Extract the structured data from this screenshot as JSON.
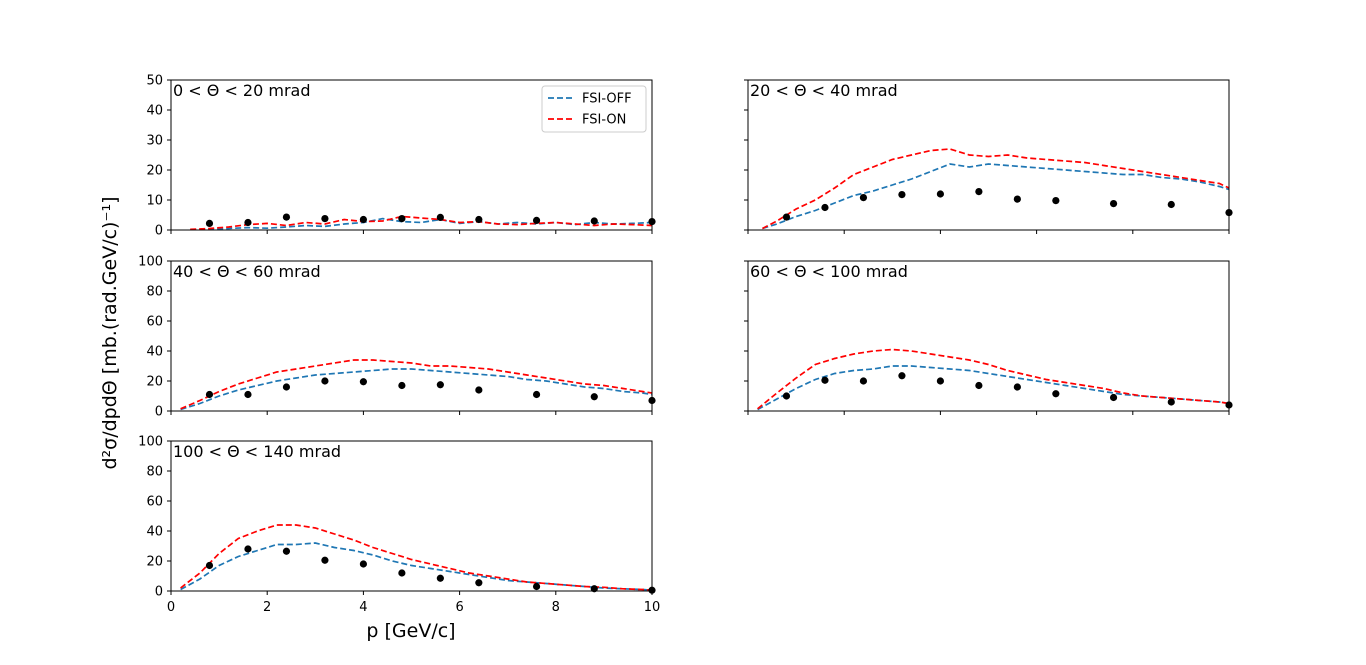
{
  "figure": {
    "ylabel": "d²σ/dpdΘ [mb.(rad.GeV/c)⁻¹]",
    "xlabel": "p [GeV/c]",
    "legend": [
      {
        "name": "FSI-OFF",
        "color": "#1f77b4"
      },
      {
        "name": "FSI-ON",
        "color": "#ff0000"
      }
    ],
    "data_color": "#000000"
  },
  "chart_data": [
    {
      "type": "line",
      "title": "0 < Θ < 20 mrad",
      "xlim": [
        0,
        10
      ],
      "ylim": [
        0,
        50
      ],
      "yticks": [
        "0",
        "10",
        "20",
        "30",
        "40",
        "50"
      ],
      "xticks": [
        "0",
        "2",
        "4",
        "6",
        "8",
        "10"
      ],
      "show_xticklabels": false,
      "show_yticklabels": true,
      "series": [
        {
          "name": "FSI-OFF",
          "x": [
            0.4,
            0.8,
            1.2,
            1.6,
            2.0,
            2.4,
            2.8,
            3.2,
            3.6,
            4.0,
            4.4,
            4.8,
            5.2,
            5.6,
            6.0,
            6.4,
            6.8,
            7.2,
            7.6,
            8.0,
            8.4,
            8.8,
            9.2,
            9.6,
            10.0
          ],
          "values": [
            0.0,
            0.3,
            0.5,
            0.8,
            0.6,
            1.0,
            1.5,
            1.2,
            2.0,
            2.5,
            3.8,
            2.8,
            2.5,
            3.5,
            2.2,
            2.8,
            2.0,
            2.5,
            2.0,
            2.5,
            1.8,
            2.5,
            2.0,
            2.2,
            2.5
          ]
        },
        {
          "name": "FSI-ON",
          "x": [
            0.4,
            0.8,
            1.2,
            1.6,
            2.0,
            2.4,
            2.8,
            3.2,
            3.6,
            4.0,
            4.4,
            4.8,
            5.2,
            5.6,
            6.0,
            6.4,
            6.8,
            7.2,
            7.6,
            8.0,
            8.4,
            8.8,
            9.2,
            9.6,
            10.0
          ],
          "values": [
            0.2,
            0.5,
            1.0,
            1.8,
            2.2,
            1.5,
            2.5,
            2.0,
            3.5,
            2.8,
            3.0,
            4.5,
            4.0,
            3.5,
            2.5,
            2.8,
            2.0,
            1.8,
            2.2,
            2.5,
            2.0,
            1.5,
            2.0,
            1.8,
            1.5
          ]
        }
      ],
      "points": {
        "x": [
          0.8,
          1.6,
          2.4,
          3.2,
          4.0,
          4.8,
          5.6,
          6.4,
          7.6,
          8.8,
          10.0
        ],
        "values": [
          2.2,
          2.5,
          4.3,
          3.8,
          3.5,
          3.8,
          4.2,
          3.5,
          3.2,
          3.0,
          2.8
        ]
      }
    },
    {
      "type": "line",
      "title": "20 < Θ < 40 mrad",
      "xlim": [
        0,
        10
      ],
      "ylim": [
        0,
        50
      ],
      "yticks": [
        "0",
        "10",
        "20",
        "30",
        "40",
        "50"
      ],
      "xticks": [
        "0",
        "2",
        "4",
        "6",
        "8",
        "10"
      ],
      "show_xticklabels": false,
      "show_yticklabels": false,
      "series": [
        {
          "name": "FSI-OFF",
          "x": [
            0.3,
            0.6,
            1.0,
            1.4,
            1.8,
            2.2,
            2.6,
            3.0,
            3.4,
            3.8,
            4.2,
            4.6,
            5.0,
            5.4,
            5.8,
            6.2,
            6.6,
            7.0,
            7.4,
            7.8,
            8.2,
            8.6,
            9.0,
            9.4,
            9.8,
            10.0
          ],
          "values": [
            0.5,
            2.0,
            4.5,
            6.5,
            9.0,
            11.5,
            13.0,
            15.0,
            17.0,
            19.5,
            22.0,
            21.0,
            22.0,
            21.5,
            21.0,
            20.5,
            20.0,
            19.5,
            19.0,
            18.5,
            18.5,
            17.5,
            17.0,
            16.0,
            14.5,
            13.5
          ]
        },
        {
          "name": "FSI-ON",
          "x": [
            0.3,
            0.6,
            1.0,
            1.4,
            1.8,
            2.2,
            2.6,
            3.0,
            3.4,
            3.8,
            4.2,
            4.6,
            5.0,
            5.4,
            5.8,
            6.2,
            6.6,
            7.0,
            7.4,
            7.8,
            8.2,
            8.6,
            9.0,
            9.4,
            9.8,
            10.0
          ],
          "values": [
            0.5,
            3.0,
            7.0,
            10.0,
            14.0,
            18.5,
            21.0,
            23.5,
            25.0,
            26.5,
            27.0,
            25.0,
            24.5,
            25.0,
            24.0,
            23.5,
            23.0,
            22.5,
            21.5,
            20.5,
            19.5,
            18.5,
            17.5,
            16.5,
            15.5,
            14.0
          ]
        }
      ],
      "points": {
        "x": [
          0.8,
          1.6,
          2.4,
          3.2,
          4.0,
          4.8,
          5.6,
          6.4,
          7.6,
          8.8,
          10.0
        ],
        "values": [
          4.3,
          7.5,
          10.8,
          11.8,
          12.0,
          12.8,
          10.3,
          9.8,
          8.8,
          8.5,
          5.8
        ]
      }
    },
    {
      "type": "line",
      "title": "40 < Θ < 60 mrad",
      "xlim": [
        0,
        10
      ],
      "ylim": [
        0,
        100
      ],
      "yticks": [
        "0",
        "20",
        "40",
        "60",
        "80",
        "100"
      ],
      "xticks": [
        "0",
        "2",
        "4",
        "6",
        "8",
        "10"
      ],
      "show_xticklabels": false,
      "show_yticklabels": true,
      "series": [
        {
          "name": "FSI-OFF",
          "x": [
            0.2,
            0.6,
            1.0,
            1.4,
            1.8,
            2.2,
            2.6,
            3.0,
            3.4,
            3.8,
            4.2,
            4.6,
            5.0,
            5.4,
            5.8,
            6.2,
            6.6,
            7.0,
            7.4,
            7.8,
            8.2,
            8.6,
            9.0,
            9.4,
            9.8,
            10.0
          ],
          "values": [
            1.0,
            5.0,
            10.0,
            14.0,
            17.0,
            20.0,
            22.0,
            24.0,
            25.0,
            26.0,
            27.0,
            28.0,
            28.0,
            27.0,
            26.0,
            25.0,
            24.0,
            23.0,
            21.0,
            20.0,
            18.0,
            16.0,
            15.0,
            13.0,
            12.0,
            11.0
          ]
        },
        {
          "name": "FSI-ON",
          "x": [
            0.2,
            0.6,
            1.0,
            1.4,
            1.8,
            2.2,
            2.6,
            3.0,
            3.4,
            3.8,
            4.2,
            4.6,
            5.0,
            5.4,
            5.8,
            6.2,
            6.6,
            7.0,
            7.4,
            7.8,
            8.2,
            8.6,
            9.0,
            9.4,
            9.8,
            10.0
          ],
          "values": [
            1.5,
            7.0,
            13.0,
            18.0,
            22.0,
            26.0,
            28.0,
            30.0,
            32.0,
            34.0,
            34.0,
            33.0,
            32.0,
            30.0,
            30.0,
            29.0,
            28.0,
            26.0,
            24.0,
            22.0,
            20.0,
            18.0,
            17.0,
            15.0,
            13.0,
            12.0
          ]
        }
      ],
      "points": {
        "x": [
          0.8,
          1.6,
          2.4,
          3.2,
          4.0,
          4.8,
          5.6,
          6.4,
          7.6,
          8.8,
          10.0
        ],
        "values": [
          11.0,
          11.0,
          16.0,
          20.0,
          19.5,
          17.0,
          17.5,
          14.0,
          11.0,
          9.5,
          7.0
        ]
      }
    },
    {
      "type": "line",
      "title": "60 < Θ < 100 mrad",
      "xlim": [
        0,
        10
      ],
      "ylim": [
        0,
        100
      ],
      "yticks": [
        "0",
        "20",
        "40",
        "60",
        "80",
        "100"
      ],
      "xticks": [
        "0",
        "2",
        "4",
        "6",
        "8",
        "10"
      ],
      "show_xticklabels": false,
      "show_yticklabels": false,
      "series": [
        {
          "name": "FSI-OFF",
          "x": [
            0.2,
            0.6,
            1.0,
            1.4,
            1.8,
            2.2,
            2.6,
            3.0,
            3.4,
            3.8,
            4.2,
            4.6,
            5.0,
            5.4,
            5.8,
            6.2,
            6.6,
            7.0,
            7.4,
            7.8,
            8.2,
            8.6,
            9.0,
            9.4,
            9.8,
            10.0
          ],
          "values": [
            1.0,
            8.0,
            15.0,
            21.0,
            25.0,
            27.0,
            28.0,
            30.0,
            30.0,
            29.0,
            28.0,
            27.0,
            25.0,
            23.0,
            21.0,
            19.0,
            17.0,
            15.0,
            13.0,
            11.0,
            10.0,
            9.0,
            8.0,
            7.0,
            6.0,
            5.0
          ]
        },
        {
          "name": "FSI-ON",
          "x": [
            0.2,
            0.6,
            1.0,
            1.4,
            1.8,
            2.2,
            2.6,
            3.0,
            3.4,
            3.8,
            4.2,
            4.6,
            5.0,
            5.4,
            5.8,
            6.2,
            6.6,
            7.0,
            7.4,
            7.8,
            8.2,
            8.6,
            9.0,
            9.4,
            9.8,
            10.0
          ],
          "values": [
            1.5,
            12.0,
            22.0,
            31.0,
            35.0,
            38.0,
            40.0,
            41.0,
            40.0,
            38.0,
            36.0,
            34.0,
            31.0,
            27.0,
            24.0,
            21.0,
            19.0,
            17.0,
            15.0,
            12.0,
            10.0,
            9.0,
            8.0,
            7.0,
            6.0,
            5.0
          ]
        }
      ],
      "points": {
        "x": [
          0.8,
          1.6,
          2.4,
          3.2,
          4.0,
          4.8,
          5.6,
          6.4,
          7.6,
          8.8,
          10.0
        ],
        "values": [
          10.0,
          20.5,
          20.0,
          23.5,
          20.0,
          17.0,
          16.0,
          11.5,
          9.0,
          6.0,
          4.0
        ]
      }
    },
    {
      "type": "line",
      "title": "100 < Θ < 140 mrad",
      "xlim": [
        0,
        10
      ],
      "ylim": [
        0,
        100
      ],
      "yticks": [
        "0",
        "20",
        "40",
        "60",
        "80",
        "100"
      ],
      "xticks": [
        "0",
        "2",
        "4",
        "6",
        "8",
        "10"
      ],
      "show_xticklabels": true,
      "show_yticklabels": true,
      "series": [
        {
          "name": "FSI-OFF",
          "x": [
            0.2,
            0.6,
            1.0,
            1.4,
            1.8,
            2.2,
            2.6,
            3.0,
            3.4,
            3.8,
            4.2,
            4.6,
            5.0,
            5.4,
            5.8,
            6.2,
            6.6,
            7.0,
            7.4,
            7.8,
            8.2,
            8.6,
            9.0,
            9.4,
            9.8,
            10.0
          ],
          "values": [
            1.0,
            8.0,
            17.0,
            23.0,
            27.0,
            31.0,
            31.0,
            32.0,
            29.0,
            27.0,
            24.0,
            20.0,
            17.0,
            15.0,
            13.0,
            11.0,
            9.0,
            7.0,
            6.0,
            5.0,
            4.0,
            3.0,
            2.0,
            1.5,
            1.0,
            0.5
          ]
        },
        {
          "name": "FSI-ON",
          "x": [
            0.2,
            0.6,
            1.0,
            1.4,
            1.8,
            2.2,
            2.6,
            3.0,
            3.4,
            3.8,
            4.2,
            4.6,
            5.0,
            5.4,
            5.8,
            6.2,
            6.6,
            7.0,
            7.4,
            7.8,
            8.2,
            8.6,
            9.0,
            9.4,
            9.8,
            10.0
          ],
          "values": [
            2.0,
            12.0,
            25.0,
            35.0,
            40.0,
            44.0,
            44.0,
            42.0,
            38.0,
            34.0,
            29.0,
            25.0,
            21.0,
            18.0,
            15.0,
            12.0,
            10.0,
            8.0,
            6.0,
            5.0,
            4.0,
            3.0,
            2.5,
            1.5,
            1.0,
            0.5
          ]
        }
      ],
      "points": {
        "x": [
          0.8,
          1.6,
          2.4,
          3.2,
          4.0,
          4.8,
          5.6,
          6.4,
          7.6,
          8.8,
          10.0
        ],
        "values": [
          17.0,
          28.0,
          26.5,
          20.5,
          18.0,
          12.0,
          8.5,
          5.5,
          3.0,
          1.5,
          0.5
        ]
      }
    }
  ]
}
